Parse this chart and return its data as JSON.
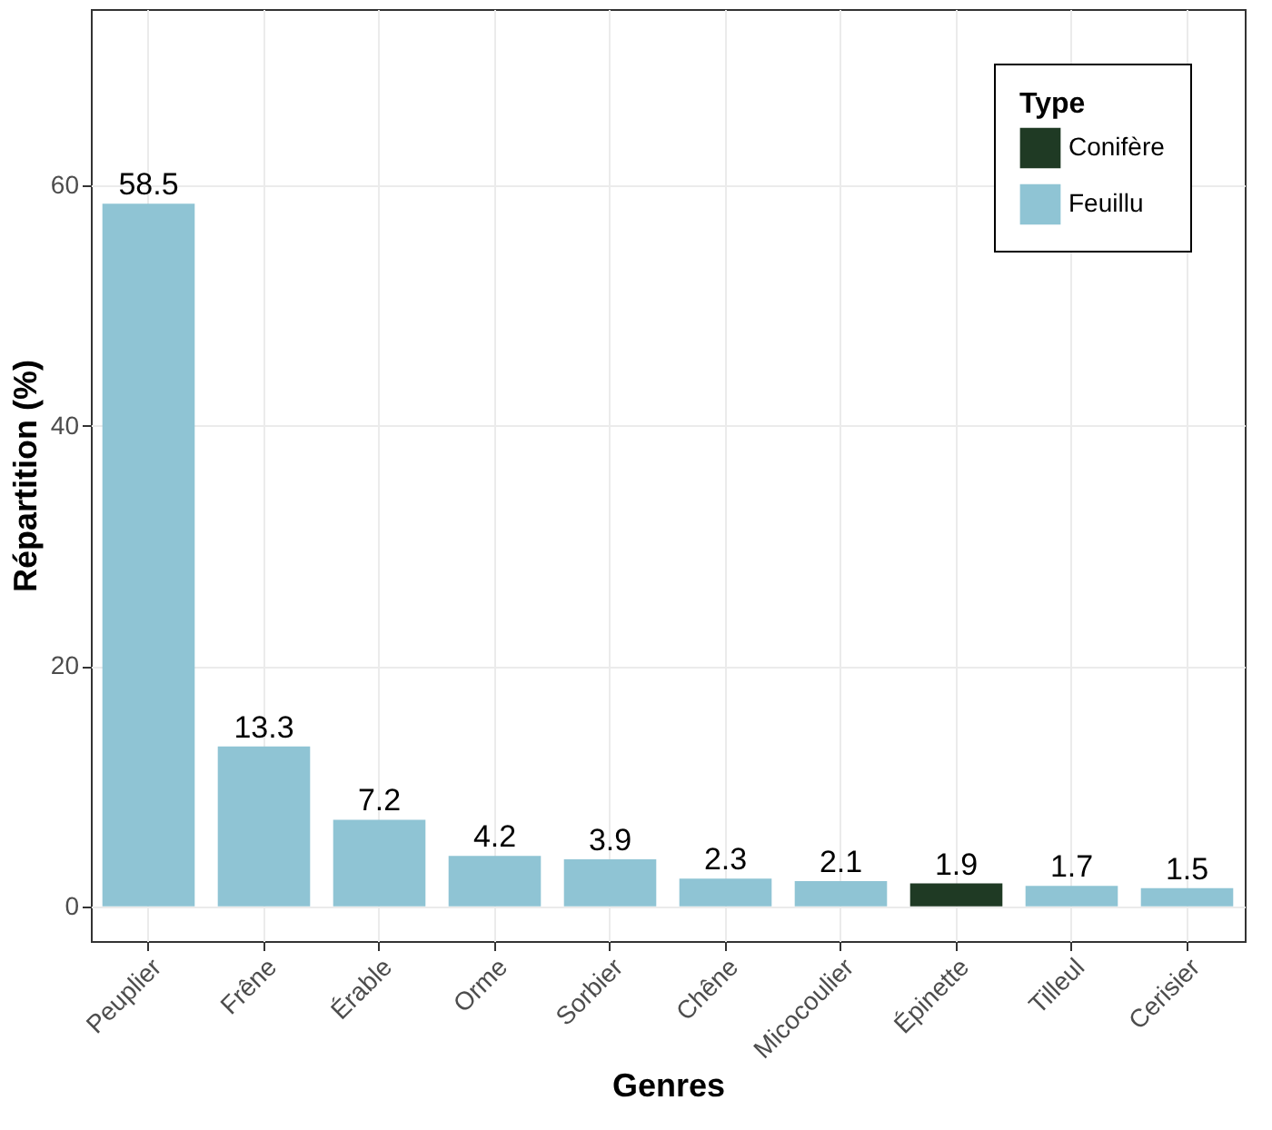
{
  "chart_data": {
    "type": "bar",
    "xlabel": "Genres",
    "ylabel": "Répartition (%)",
    "legend_title": "Type",
    "categories": [
      "Peuplier",
      "Frêne",
      "Érable",
      "Orme",
      "Sorbier",
      "Chêne",
      "Micocoulier",
      "Épinette",
      "Tilleul",
      "Cerisier"
    ],
    "series": [
      {
        "name": "Conifère",
        "color": "#1f3a24",
        "values": [
          null,
          null,
          null,
          null,
          null,
          null,
          null,
          1.9,
          null,
          null
        ]
      },
      {
        "name": "Feuillu",
        "color": "#8fc4d4",
        "values": [
          58.5,
          13.3,
          7.2,
          4.2,
          3.9,
          2.3,
          2.1,
          null,
          1.7,
          1.5
        ]
      }
    ],
    "ylim": [
      -2.9,
      74.7
    ],
    "yticks": [
      0,
      20,
      40,
      60
    ],
    "grid": true,
    "legend": "top right",
    "data_labels": true
  }
}
